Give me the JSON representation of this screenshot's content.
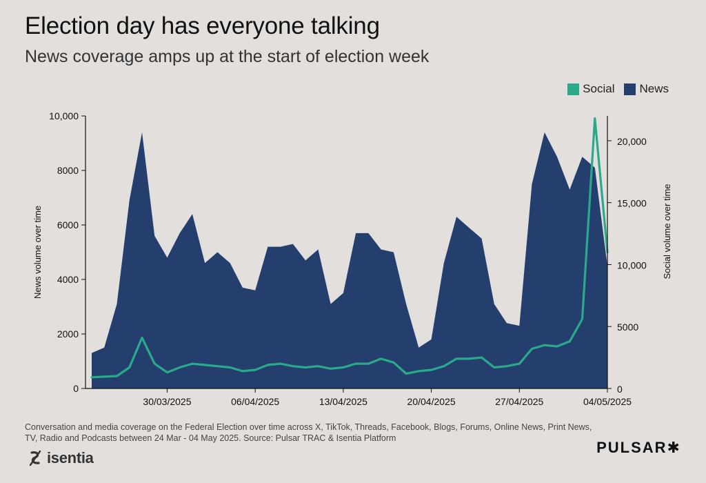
{
  "header": {
    "title": "Election day has everyone talking",
    "subtitle": "News coverage amps up at the start of election week"
  },
  "legend": {
    "items": [
      {
        "label": "Social",
        "color": "#2ba98b"
      },
      {
        "label": "News",
        "color": "#243f6d"
      }
    ]
  },
  "footer": {
    "note": "Conversation and media coverage on the Federal Election over time across X, TikTok, Threads, Facebook, Blogs, Forums, Online News, Print News, TV, Radio and Podcasts between 24 Mar - 04 May 2025. Source: Pulsar TRAC & Isentia Platform",
    "isentia_brand": "isentia",
    "pulsar_brand": "PULSAR✱"
  },
  "chart_data": {
    "type": "area",
    "title": "Election day has everyone talking",
    "subtitle": "News coverage amps up at the start of election week",
    "x_labels": [
      "30/03/2025",
      "06/04/2025",
      "13/04/2025",
      "20/04/2025",
      "27/04/2025",
      "04/05/2025"
    ],
    "x": [
      "24/03",
      "25/03",
      "26/03",
      "27/03",
      "28/03",
      "29/03",
      "30/03",
      "31/03",
      "01/04",
      "02/04",
      "03/04",
      "04/04",
      "05/04",
      "06/04",
      "07/04",
      "08/04",
      "09/04",
      "10/04",
      "11/04",
      "12/04",
      "13/04",
      "14/04",
      "15/04",
      "16/04",
      "17/04",
      "18/04",
      "19/04",
      "20/04",
      "21/04",
      "22/04",
      "23/04",
      "24/04",
      "25/04",
      "26/04",
      "27/04",
      "28/04",
      "29/04",
      "30/04",
      "01/05",
      "02/05",
      "03/05",
      "04/05"
    ],
    "left_axis": {
      "label": "News volume over time",
      "ylim": [
        0,
        10000
      ],
      "ticks": [
        0,
        2000,
        4000,
        6000,
        8000,
        10000
      ],
      "tick_labels": [
        "0",
        "2000",
        "4000",
        "6000",
        "8000",
        "10,000"
      ]
    },
    "right_axis": {
      "label": "Social volume over time",
      "ylim": [
        0,
        22000
      ],
      "ticks": [
        0,
        5000,
        10000,
        15000,
        20000
      ],
      "tick_labels": [
        "0",
        "5000",
        "10,000",
        "15,000",
        "20,000"
      ]
    },
    "series": [
      {
        "name": "News",
        "type": "area",
        "axis": "left",
        "color": "#243f6d",
        "values": [
          1300,
          1500,
          3100,
          6900,
          9400,
          5600,
          4800,
          5700,
          6400,
          4600,
          5000,
          4600,
          3700,
          3600,
          5200,
          5200,
          5300,
          4700,
          5100,
          3100,
          3500,
          5700,
          5700,
          5100,
          5000,
          3100,
          1500,
          1800,
          4600,
          6300,
          5900,
          5500,
          3100,
          2400,
          2300,
          7500,
          9400,
          8500,
          7300,
          8500,
          8100,
          4500
        ]
      },
      {
        "name": "Social",
        "type": "line",
        "axis": "right",
        "color": "#2ba98b",
        "values": [
          900,
          950,
          1000,
          1700,
          4100,
          2000,
          1300,
          1700,
          2000,
          1900,
          1800,
          1700,
          1400,
          1500,
          1900,
          2000,
          1800,
          1700,
          1800,
          1600,
          1700,
          2000,
          2000,
          2400,
          2100,
          1200,
          1400,
          1500,
          1800,
          2400,
          2400,
          2500,
          1700,
          1800,
          2000,
          3200,
          3500,
          3400,
          3800,
          5600,
          21800,
          11000
        ]
      }
    ],
    "grid": false,
    "legend_position": "top-right"
  }
}
